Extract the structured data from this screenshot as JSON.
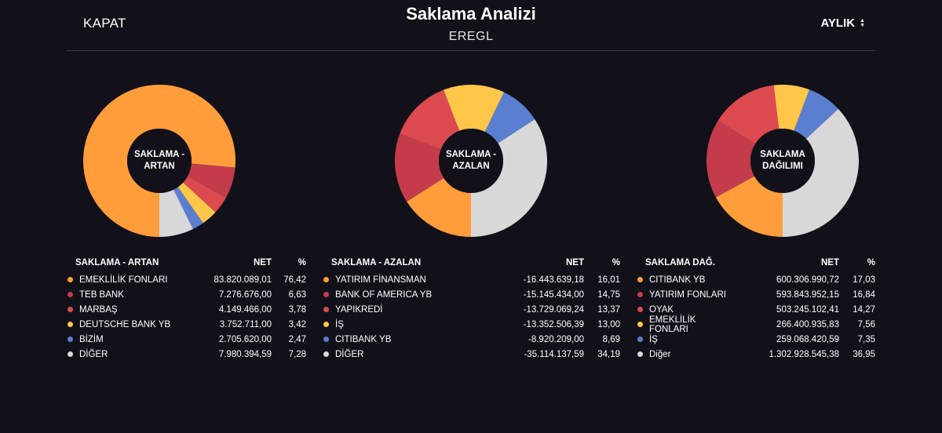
{
  "header": {
    "close_label": "KAPAT",
    "title": "Saklama Analizi",
    "symbol": "EREGL",
    "period_label": "AYLIK"
  },
  "panels": [
    {
      "center_label": "SAKLAMA -\nARTAN",
      "table": {
        "header_name": "SAKLAMA - ARTAN",
        "header_net": "NET",
        "header_pct": "%",
        "rows": [
          {
            "name": "EMEKLİLİK FONLARI",
            "net": "83.820.089,01",
            "pct": "76,42",
            "color": "#ff9d3b"
          },
          {
            "name": "TEB BANK",
            "net": "7.276.676,00",
            "pct": "6,63",
            "color": "#c43c4c"
          },
          {
            "name": "MARBAŞ",
            "net": "4.149.466,00",
            "pct": "3,78",
            "color": "#dc4a4f"
          },
          {
            "name": "DEUTSCHE BANK YB",
            "net": "3.752.711,00",
            "pct": "3,42",
            "color": "#ffc74a"
          },
          {
            "name": "BİZİM",
            "net": "2.705.620,00",
            "pct": "2,47",
            "color": "#5b7fd0"
          },
          {
            "name": "DİĞER",
            "net": "7.980.394,59",
            "pct": "7,28",
            "color": "#d8d8d8"
          }
        ]
      }
    },
    {
      "center_label": "SAKLAMA -\nAZALAN",
      "table": {
        "header_name": "SAKLAMA - AZALAN",
        "header_net": "NET",
        "header_pct": "%",
        "rows": [
          {
            "name": "YATIRIM FİNANSMAN",
            "net": "-16.443.639,18",
            "pct": "16,01",
            "color": "#ff9d3b"
          },
          {
            "name": "BANK OF AMERICA YB",
            "net": "-15.145.434,00",
            "pct": "14,75",
            "color": "#c43c4c"
          },
          {
            "name": "YAPIKREDİ",
            "net": "-13.729.069,24",
            "pct": "13,37",
            "color": "#dc4a4f"
          },
          {
            "name": "İŞ",
            "net": "-13.352.506,39",
            "pct": "13,00",
            "color": "#ffc74a"
          },
          {
            "name": "CITIBANK YB",
            "net": "-8.920.209,00",
            "pct": "8,69",
            "color": "#5b7fd0"
          },
          {
            "name": "DİĞER",
            "net": "-35.114.137,59",
            "pct": "34,19",
            "color": "#d8d8d8"
          }
        ]
      }
    },
    {
      "center_label": "SAKLAMA\nDAĞILIMI",
      "table": {
        "header_name": "SAKLAMA DAĞ.",
        "header_net": "NET",
        "header_pct": "%",
        "rows": [
          {
            "name": "CITIBANK YB",
            "net": "600.306.990,72",
            "pct": "17,03",
            "color": "#ff9d3b"
          },
          {
            "name": "YATIRIM FONLARI",
            "net": "593.843.952,15",
            "pct": "16,84",
            "color": "#c43c4c"
          },
          {
            "name": "OYAK",
            "net": "503.245.102,41",
            "pct": "14,27",
            "color": "#dc4a4f"
          },
          {
            "name": "EMEKLİLİK FONLARI",
            "net": "266.400.935,83",
            "pct": "7,56",
            "color": "#ffc74a"
          },
          {
            "name": "İŞ",
            "net": "259.068.420,59",
            "pct": "7,35",
            "color": "#5b7fd0"
          },
          {
            "name": "Diğer",
            "net": "1.302.928.545,38",
            "pct": "36,95",
            "color": "#d8d8d8"
          }
        ]
      }
    }
  ]
}
